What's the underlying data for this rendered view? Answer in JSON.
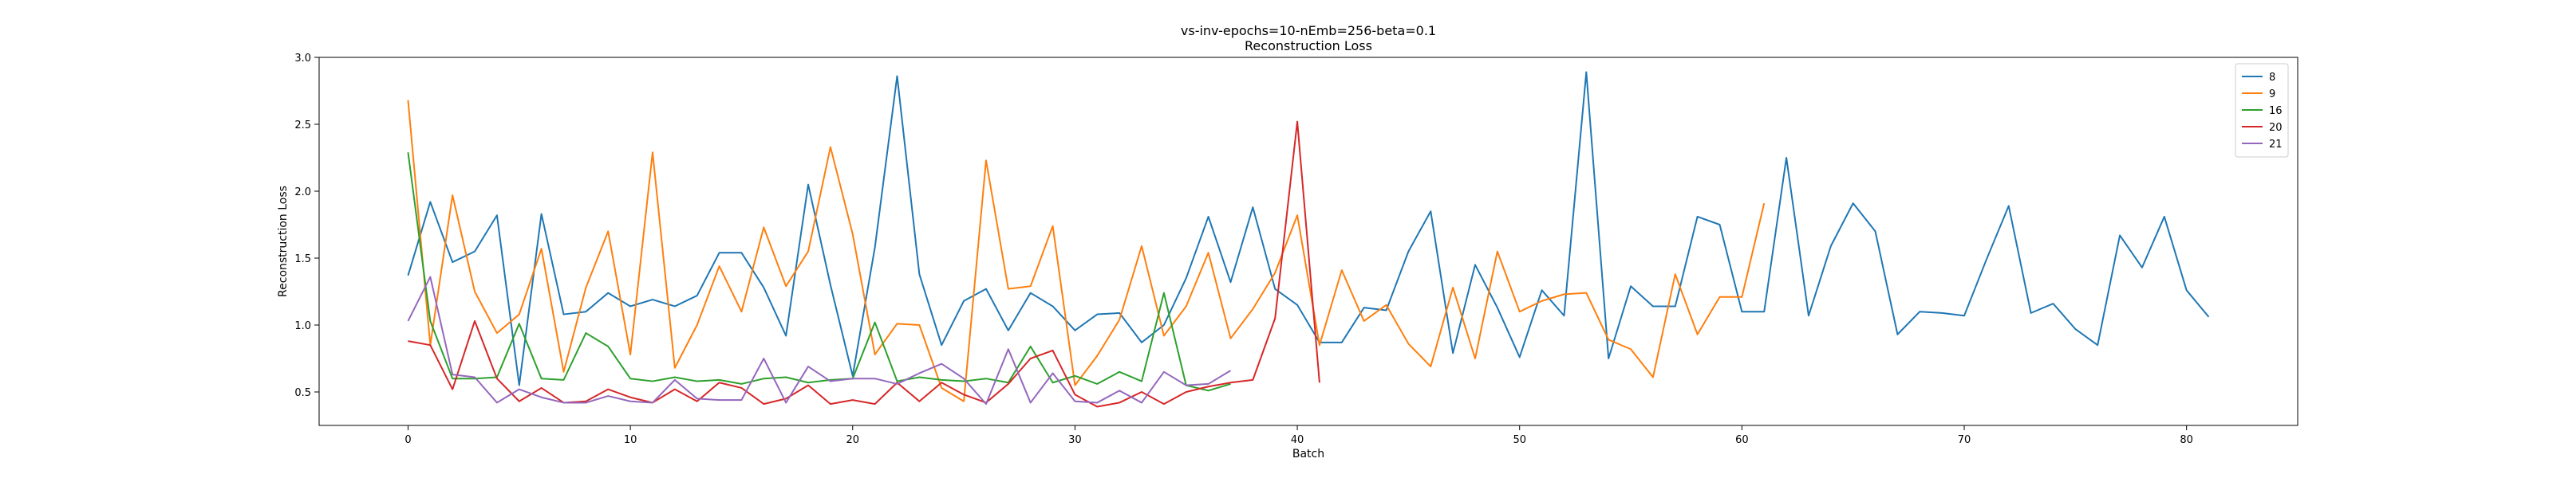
{
  "chart_data": {
    "type": "line",
    "title": "vs-inv-epochs=10-nEmb=256-beta=0.1",
    "subtitle": "Reconstruction Loss",
    "xlabel": "Batch",
    "ylabel": "Reconstruction Loss",
    "xlim": [
      -4,
      85
    ],
    "ylim": [
      0.25,
      3.0
    ],
    "xticks": [
      0,
      10,
      20,
      30,
      40,
      50,
      60,
      70,
      80
    ],
    "yticks": [
      0.5,
      1.0,
      1.5,
      2.0,
      2.5,
      3.0
    ],
    "xtick_labels": [
      "0",
      "10",
      "20",
      "30",
      "40",
      "50",
      "60",
      "70",
      "80"
    ],
    "ytick_labels": [
      "0.5",
      "1.0",
      "1.5",
      "2.0",
      "2.5",
      "3.0"
    ],
    "grid": false,
    "legend_position": "top-right",
    "series": [
      {
        "name": "8",
        "color": "#1f77b4",
        "values": [
          1.37,
          1.92,
          1.47,
          1.55,
          1.82,
          0.55,
          1.83,
          1.08,
          1.1,
          1.24,
          1.14,
          1.19,
          1.14,
          1.22,
          1.54,
          1.54,
          1.28,
          0.92,
          2.05,
          1.3,
          0.62,
          1.58,
          2.86,
          1.38,
          0.85,
          1.18,
          1.27,
          0.96,
          1.24,
          1.14,
          0.96,
          1.08,
          1.09,
          0.87,
          1.0,
          1.35,
          1.81,
          1.32,
          1.88,
          1.27,
          1.15,
          0.87,
          0.87,
          1.13,
          1.11,
          1.55,
          1.85,
          0.79,
          1.45,
          1.13,
          0.76,
          1.26,
          1.07,
          2.89,
          0.75,
          1.29,
          1.14,
          1.14,
          1.81,
          1.75,
          1.1,
          1.1,
          2.25,
          1.07,
          1.59,
          1.91,
          1.7,
          0.93,
          1.1,
          1.09,
          1.07,
          1.49,
          1.89,
          1.09,
          1.16,
          0.97,
          0.85,
          1.67,
          1.43,
          1.81,
          1.26,
          1.06
        ]
      },
      {
        "name": "9",
        "color": "#ff7f0e",
        "values": [
          2.68,
          0.85,
          1.97,
          1.25,
          0.94,
          1.08,
          1.57,
          0.65,
          1.28,
          1.7,
          0.78,
          2.29,
          0.68,
          1.0,
          1.44,
          1.1,
          1.73,
          1.29,
          1.55,
          2.33,
          1.68,
          0.78,
          1.01,
          1.0,
          0.53,
          0.43,
          2.23,
          1.27,
          1.29,
          1.74,
          0.55,
          0.77,
          1.04,
          1.59,
          0.92,
          1.14,
          1.54,
          0.9,
          1.12,
          1.39,
          1.82,
          0.85,
          1.41,
          1.03,
          1.15,
          0.86,
          0.69,
          1.28,
          0.75,
          1.55,
          1.1,
          1.18,
          1.23,
          1.24,
          0.89,
          0.82,
          0.61,
          1.38,
          0.93,
          1.21,
          1.21,
          1.91
        ]
      },
      {
        "name": "16",
        "color": "#2ca02c",
        "values": [
          2.29,
          1.03,
          0.6,
          0.6,
          0.61,
          1.01,
          0.6,
          0.59,
          0.94,
          0.84,
          0.6,
          0.58,
          0.61,
          0.58,
          0.59,
          0.56,
          0.6,
          0.61,
          0.57,
          0.59,
          0.6,
          1.02,
          0.58,
          0.61,
          0.59,
          0.58,
          0.6,
          0.57,
          0.84,
          0.57,
          0.62,
          0.56,
          0.65,
          0.58,
          1.24,
          0.55,
          0.51,
          0.56
        ]
      },
      {
        "name": "20",
        "color": "#d62728",
        "values": [
          0.88,
          0.85,
          0.52,
          1.03,
          0.6,
          0.43,
          0.53,
          0.42,
          0.43,
          0.52,
          0.46,
          0.42,
          0.52,
          0.43,
          0.57,
          0.53,
          0.41,
          0.45,
          0.55,
          0.41,
          0.44,
          0.41,
          0.57,
          0.43,
          0.57,
          0.48,
          0.42,
          0.56,
          0.75,
          0.81,
          0.48,
          0.39,
          0.42,
          0.5,
          0.41,
          0.5,
          0.54,
          0.57,
          0.59,
          1.05,
          2.52,
          0.57
        ]
      },
      {
        "name": "21",
        "color": "#9467bd",
        "values": [
          1.03,
          1.36,
          0.63,
          0.61,
          0.42,
          0.52,
          0.46,
          0.42,
          0.42,
          0.47,
          0.43,
          0.42,
          0.59,
          0.45,
          0.44,
          0.44,
          0.75,
          0.42,
          0.69,
          0.58,
          0.6,
          0.6,
          0.56,
          0.64,
          0.71,
          0.6,
          0.41,
          0.82,
          0.42,
          0.64,
          0.43,
          0.42,
          0.51,
          0.42,
          0.65,
          0.55,
          0.56,
          0.66
        ]
      }
    ]
  }
}
